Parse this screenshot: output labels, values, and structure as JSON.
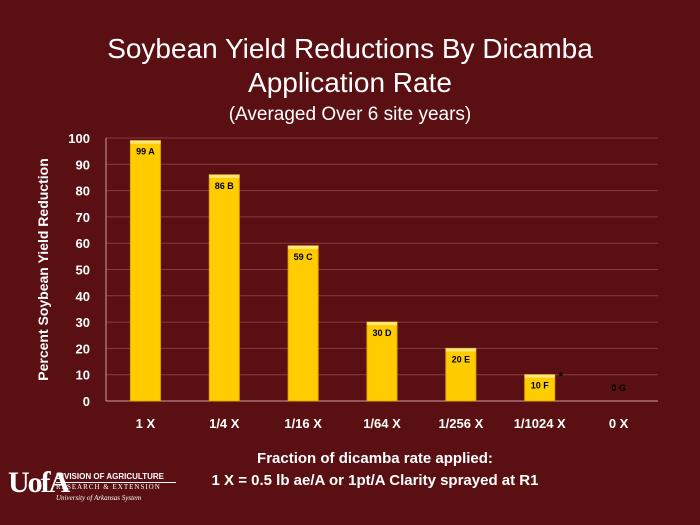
{
  "chart_data": {
    "type": "bar",
    "title_line1": "Soybean Yield Reductions By Dicamba",
    "title_line2": "Application Rate",
    "subtitle": "(Averaged Over 6 site years)",
    "ylabel": "Percent Soybean Yield Reduction",
    "xlabel_line1": "Fraction of dicamba rate applied:",
    "xlabel_line2": "1 X = 0.5 lb ae/A or 1pt/A Clarity sprayed at R1",
    "categories": [
      "1 X",
      "1/4 X",
      "1/16 X",
      "1/64 X",
      "1/256 X",
      "1/1024 X",
      "0 X"
    ],
    "values": [
      99,
      86,
      59,
      30,
      20,
      10,
      0
    ],
    "data_labels": [
      "99 A",
      "86 B",
      "59 C",
      "30 D",
      "20 E",
      "10 F",
      "0 G"
    ],
    "annotation": "*",
    "ylim": [
      0,
      100
    ],
    "yticks": [
      0,
      10,
      20,
      30,
      40,
      50,
      60,
      70,
      80,
      90,
      100
    ],
    "grid": true,
    "bar_color": "#ffcc00",
    "background": "#5a0f12"
  },
  "logo": {
    "mark": "UofA",
    "line1": "DIVISION OF AGRICULTURE",
    "line2": "RESEARCH & EXTENSION",
    "line3": "University of Arkansas System"
  }
}
